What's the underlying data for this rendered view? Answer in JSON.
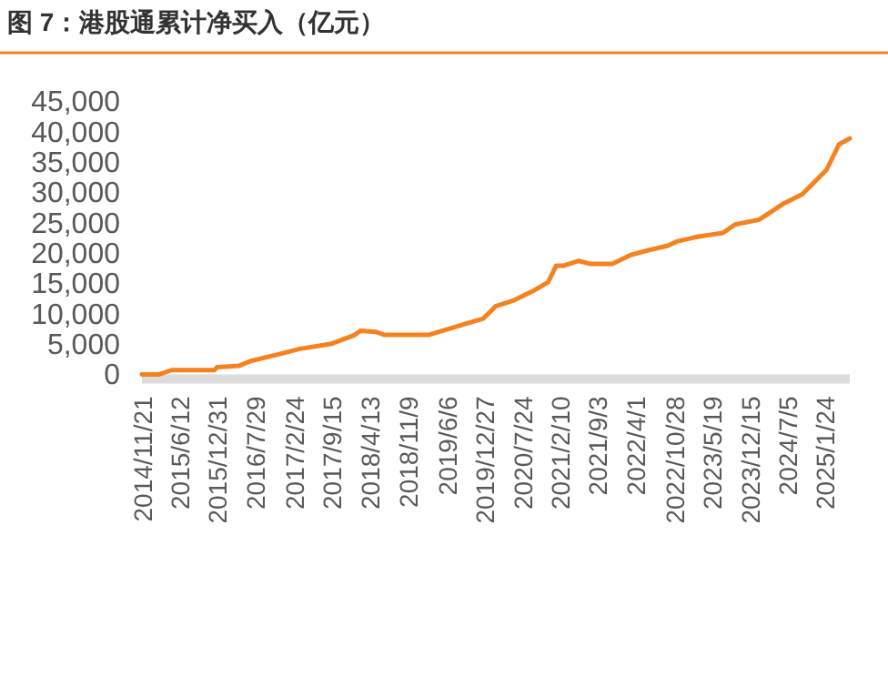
{
  "chart_data": {
    "type": "line",
    "title": "图 7：港股通累计净买入（亿元）",
    "x": [
      "2014-11-17",
      "2015-02-20",
      "2015-04-27",
      "2015-12-16",
      "2016-01-01",
      "2016-04-27",
      "2016-07-01",
      "2016-11-14",
      "2017-03-26",
      "2017-09-09",
      "2018-01-19",
      "2018-02-20",
      "2018-05-15",
      "2018-07-01",
      "2019-02-24",
      "2019-08-08",
      "2019-12-20",
      "2020-02-24",
      "2020-06-03",
      "2020-09-13",
      "2020-12-06",
      "2021-01-19",
      "2021-02-28",
      "2021-05-22",
      "2021-07-27",
      "2021-11-21",
      "2022-03-03",
      "2022-06-10",
      "2022-09-20",
      "2022-11-06",
      "2023-03-03",
      "2023-07-16",
      "2023-09-20",
      "2024-01-30",
      "2024-06-13",
      "2024-09-20",
      "2025-01-30",
      "2025-04-08",
      "2025-06-06"
    ],
    "series": [
      {
        "color": "#f5821f",
        "values": [
          0,
          0,
          700,
          700,
          1200,
          1400,
          2200,
          3200,
          4200,
          5000,
          6500,
          7200,
          7000,
          6500,
          6500,
          8000,
          9200,
          11200,
          12200,
          13700,
          15200,
          17900,
          17900,
          18700,
          18200,
          18200,
          19700,
          20500,
          21200,
          21900,
          22700,
          23300,
          24700,
          25500,
          28200,
          29700,
          33700,
          37900,
          38900
        ]
      }
    ],
    "xlim": [
      "2014-11-17",
      "2025-06-06"
    ],
    "xticks": [
      {
        "value": "2014-11-21",
        "label": "2014/11/21"
      },
      {
        "value": "2015-06-12",
        "label": "2015/6/12"
      },
      {
        "value": "2015-12-31",
        "label": "2015/12/31"
      },
      {
        "value": "2016-07-29",
        "label": "2016/7/29"
      },
      {
        "value": "2017-02-24",
        "label": "2017/2/24"
      },
      {
        "value": "2017-09-15",
        "label": "2017/9/15"
      },
      {
        "value": "2018-04-13",
        "label": "2018/4/13"
      },
      {
        "value": "2018-11-09",
        "label": "2018/11/9"
      },
      {
        "value": "2019-06-06",
        "label": "2019/6/6"
      },
      {
        "value": "2019-12-27",
        "label": "2019/12/27"
      },
      {
        "value": "2020-07-24",
        "label": "2020/7/24"
      },
      {
        "value": "2021-02-10",
        "label": "2021/2/10"
      },
      {
        "value": "2021-09-03",
        "label": "2021/9/3"
      },
      {
        "value": "2022-04-01",
        "label": "2022/4/1"
      },
      {
        "value": "2022-10-28",
        "label": "2022/10/28"
      },
      {
        "value": "2023-05-19",
        "label": "2023/5/19"
      },
      {
        "value": "2023-12-15",
        "label": "2023/12/15"
      },
      {
        "value": "2024-07-05",
        "label": "2024/7/5"
      },
      {
        "value": "2025-01-24",
        "label": "2025/1/24"
      }
    ],
    "ylim": [
      0,
      45000
    ],
    "yticks": [
      {
        "value": 0,
        "label": "0"
      },
      {
        "value": 5000,
        "label": "5,000"
      },
      {
        "value": 10000,
        "label": "10,000"
      },
      {
        "value": 15000,
        "label": "15,000"
      },
      {
        "value": 20000,
        "label": "20,000"
      },
      {
        "value": 25000,
        "label": "25,000"
      },
      {
        "value": 30000,
        "label": "30,000"
      },
      {
        "value": 35000,
        "label": "35,000"
      },
      {
        "value": 40000,
        "label": "40,000"
      },
      {
        "value": 45000,
        "label": "45,000"
      }
    ],
    "grid": false,
    "marker": "none",
    "line_style": "solid"
  }
}
